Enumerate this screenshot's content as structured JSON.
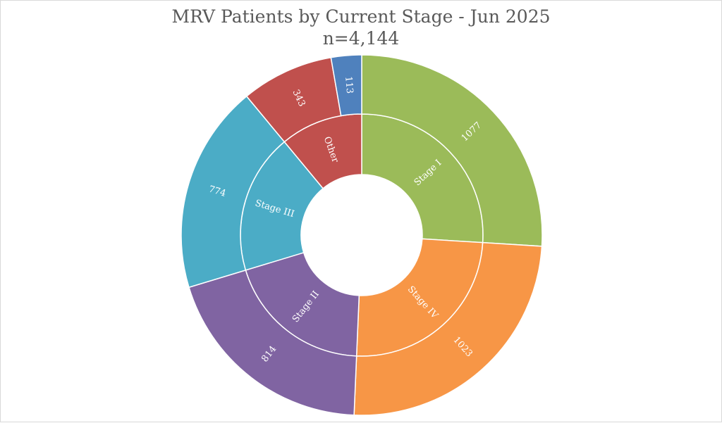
{
  "chart_data": {
    "type": "sunburst",
    "title": "MRV Patients by Current Stage - Jun 2025",
    "subtitle": "n=4,144",
    "inner_ring": [
      {
        "label": "Stage I",
        "value": 1077,
        "color": "#9BBB59"
      },
      {
        "label": "Stage IV",
        "value": 1023,
        "color": "#F79646"
      },
      {
        "label": "Stage II",
        "value": 814,
        "color": "#8064A2"
      },
      {
        "label": "Stage III",
        "value": 774,
        "color": "#4BACC6"
      },
      {
        "label": "Other",
        "value": 456,
        "color": "#C0504D"
      }
    ],
    "outer_ring": [
      {
        "label": "1077",
        "value": 1077,
        "parent": "Stage I",
        "color": "#9BBB59"
      },
      {
        "label": "1023",
        "value": 1023,
        "parent": "Stage IV",
        "color": "#F79646"
      },
      {
        "label": "814",
        "value": 814,
        "parent": "Stage II",
        "color": "#8064A2"
      },
      {
        "label": "774",
        "value": 774,
        "parent": "Stage III",
        "color": "#4BACC6"
      },
      {
        "label": "343",
        "value": 343,
        "parent": "Other",
        "color": "#C0504D"
      },
      {
        "label": "113",
        "value": 113,
        "parent": "Other",
        "color": "#4F81BD"
      }
    ]
  }
}
